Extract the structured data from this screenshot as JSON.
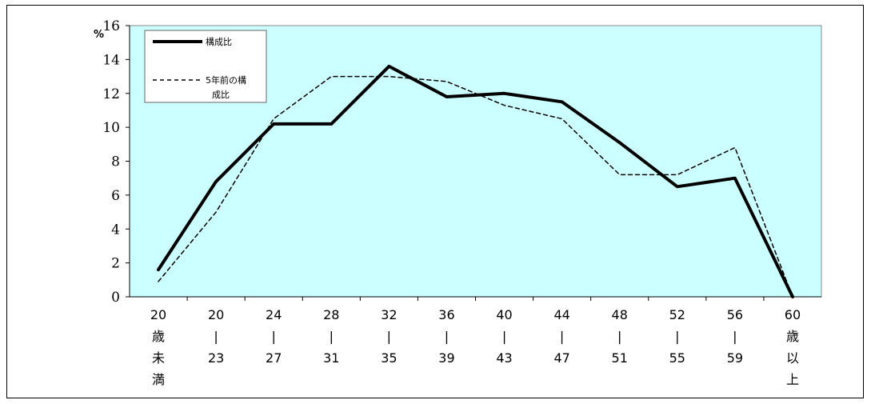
{
  "chart_data": {
    "type": "line",
    "ylabel": "%",
    "ylim": [
      0,
      16
    ],
    "yticks": [
      0,
      2,
      4,
      6,
      8,
      10,
      12,
      14,
      16
    ],
    "categories": [
      [
        "20",
        "歳",
        "未",
        "満"
      ],
      [
        "20",
        "|",
        "23"
      ],
      [
        "24",
        "|",
        "27"
      ],
      [
        "28",
        "|",
        "31"
      ],
      [
        "32",
        "|",
        "35"
      ],
      [
        "36",
        "|",
        "39"
      ],
      [
        "40",
        "|",
        "43"
      ],
      [
        "44",
        "|",
        "47"
      ],
      [
        "48",
        "|",
        "51"
      ],
      [
        "52",
        "|",
        "55"
      ],
      [
        "56",
        "|",
        "59"
      ],
      [
        "60",
        "歳",
        "以",
        "上"
      ]
    ],
    "series": [
      {
        "name": "構成比",
        "style": "solid",
        "values": [
          1.6,
          6.8,
          10.2,
          10.2,
          13.6,
          11.8,
          12.0,
          11.5,
          9.1,
          6.5,
          7.0,
          0.0
        ]
      },
      {
        "name": "5年前の構成比",
        "style": "dashed",
        "values": [
          0.9,
          5.0,
          10.5,
          13.0,
          13.0,
          12.7,
          11.3,
          10.5,
          7.2,
          7.2,
          8.8,
          0.0
        ]
      }
    ],
    "legend": {
      "position": "top-left",
      "lines": [
        [
          "構成比"
        ],
        [
          "5年前の構",
          "成比"
        ]
      ]
    },
    "grid": false,
    "colors": {
      "plot_bg": "#ccffff",
      "line": "#000000"
    }
  }
}
